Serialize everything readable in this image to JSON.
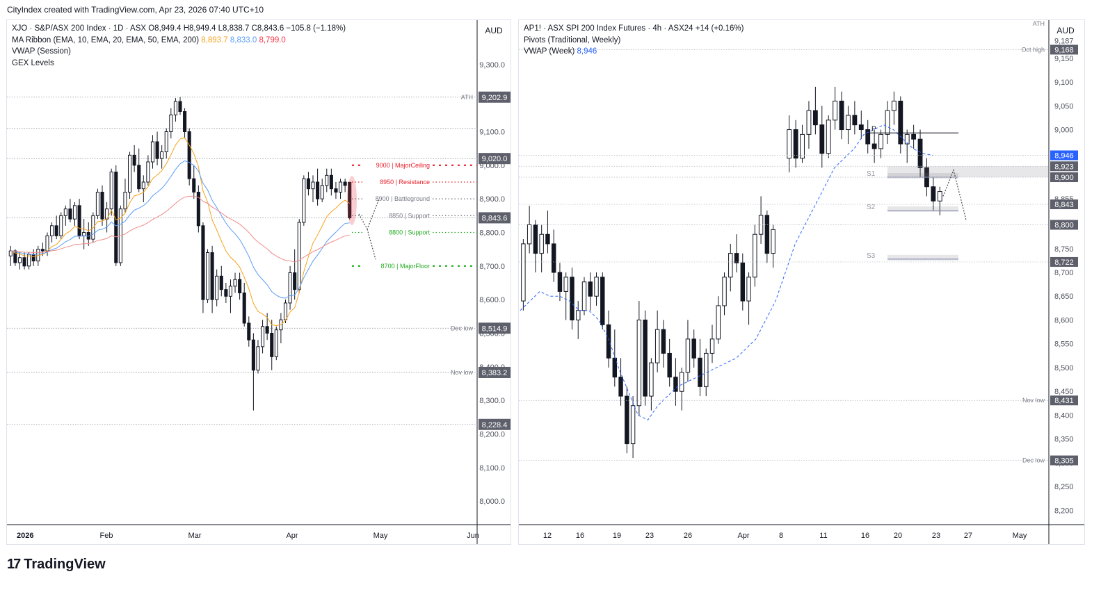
{
  "header": {
    "text": "CityIndex created with TradingView.com, Apr 23, 2026 07:40 UTC+10"
  },
  "footer": {
    "logo_text": "TradingView",
    "logo_icon": "tradingview-logo-icon"
  },
  "colors": {
    "up": "#ffffff",
    "down": "#131722",
    "ema10": "#f7a21b",
    "ema20": "#5b9cf6",
    "ema50": "#f08a8a",
    "ema200": "#f23645",
    "vwap": "#2962ff",
    "red": "#e8202a",
    "green": "#22ab20",
    "grey": "#787b86"
  },
  "left": {
    "legend": {
      "line1": "XJO · S&P/ASX 200 Index · 1D · ASX  O8,949.4  H8,949.4  L8,838.7  C8,843.6  −105.8 (−1.18%)",
      "line2_label": "MA Ribbon (EMA, 10, EMA, 20, EMA, 50, EMA, 200)",
      "ema10_value": "8,893.7",
      "ema20_value": "8,833.0",
      "ema50_value": "8,799.0",
      "line3": "VWAP (Session)",
      "line4": "GEX Levels"
    },
    "currency": "AUD",
    "y_ticks": [
      "9,300.0",
      "9,200.0",
      "9,100.0",
      "9,000.0",
      "8,900.0",
      "8,800.0",
      "8,700.0",
      "8,600.0",
      "8,500.0",
      "8,400.0",
      "8,300.0",
      "8,200.0",
      "8,100.0",
      "8,000.0"
    ],
    "y_tick_values": [
      9300,
      9200,
      9100,
      9000,
      8900,
      8800,
      8700,
      8600,
      8500,
      8400,
      8300,
      8200,
      8100,
      8000
    ],
    "x_labels": [
      "2026",
      "Feb",
      "Mar",
      "Apr",
      "May",
      "Jun"
    ],
    "level_labels": [
      {
        "name": "ATH",
        "value": 9202.9,
        "text": "9,202.9",
        "tag": "ATH"
      },
      {
        "name": "hi",
        "value": 9110,
        "text": "",
        "tag": ""
      },
      {
        "name": "9020",
        "value": 9020.0,
        "text": "9,020.0",
        "tag": ""
      },
      {
        "name": "cur",
        "value": 8843.6,
        "text": "8,843.6",
        "tag": ""
      },
      {
        "name": "declow",
        "value": 8514.9,
        "text": "8,514.9",
        "tag": "Dec low"
      },
      {
        "name": "novlow",
        "value": 8383.2,
        "text": "8,383.2",
        "tag": "Nov low"
      },
      {
        "name": "low2",
        "value": 8228.4,
        "text": "8,228.4",
        "tag": ""
      }
    ],
    "gex": [
      {
        "value": 9000,
        "text": "9000 | MajorCeiling",
        "color": "red",
        "style": "major"
      },
      {
        "value": 8950,
        "text": "8950 | Resistance",
        "color": "red",
        "style": "minor"
      },
      {
        "value": 8900,
        "text": "8900 | Battleground",
        "color": "grey",
        "style": "minor"
      },
      {
        "value": 8850,
        "text": "8850 | Support",
        "color": "grey",
        "style": "minor"
      },
      {
        "value": 8800,
        "text": "8800 | Support",
        "color": "green",
        "style": "minor"
      },
      {
        "value": 8700,
        "text": "8700 | MajorFloor",
        "color": "green",
        "style": "major"
      }
    ]
  },
  "right": {
    "legend": {
      "line1": "AP1! · ASX SPI 200 Index Futures · 4h · ASX24  +14 (+0.16%)",
      "line2": "Pivots (Traditional, Weekly)",
      "line3_label": "VWAP (Week)",
      "vwap_value": "8,946"
    },
    "currency": "AUD",
    "ath_tag": "ATH",
    "y_ticks": [
      "9,187",
      "9,150",
      "9,100",
      "9,050",
      "9,000",
      "8,855",
      "8,750",
      "8,700",
      "8,650",
      "8,600",
      "8,550",
      "8,500",
      "8,450",
      "8,400",
      "8,350",
      "8,300",
      "8,250",
      "8,200"
    ],
    "y_tick_values": [
      9187,
      9150,
      9100,
      9050,
      9000,
      8855,
      8750,
      8700,
      8650,
      8600,
      8550,
      8500,
      8450,
      8400,
      8350,
      8300,
      8250,
      8200
    ],
    "x_labels": [
      "12",
      "16",
      "19",
      "23",
      "26",
      "Apr",
      "8",
      "11",
      "16",
      "20",
      "23",
      "27",
      "May"
    ],
    "price_tags": [
      {
        "value": 9168,
        "text": "9,168",
        "tag": "Oct high",
        "kind": "grey"
      },
      {
        "value": 8946,
        "text": "8,946",
        "tag": "",
        "kind": "blue"
      },
      {
        "value": 8923,
        "text": "8,923",
        "tag": "",
        "kind": "grey"
      },
      {
        "value": 8900,
        "text": "8,900",
        "tag": "",
        "kind": "grey"
      },
      {
        "value": 8843,
        "text": "8,843",
        "tag": "",
        "kind": "grey"
      },
      {
        "value": 8800,
        "text": "8,800",
        "tag": "",
        "kind": "grey"
      },
      {
        "value": 8722,
        "text": "8,722",
        "tag": "",
        "kind": "grey"
      },
      {
        "value": 8431,
        "text": "8,431",
        "tag": "Nov low",
        "kind": "grey"
      },
      {
        "value": 8305,
        "text": "8,305",
        "tag": "Dec low",
        "kind": "grey"
      }
    ],
    "pivots": [
      {
        "label": "P",
        "value": 8993
      },
      {
        "label": "S1",
        "value": 8900
      },
      {
        "label": "S2",
        "value": 8830
      },
      {
        "label": "S3",
        "value": 8728
      }
    ]
  },
  "chart_data": [
    {
      "type": "candlestick",
      "title": "XJO · S&P/ASX 200 Index · 1D · ASX",
      "ylim": [
        7930,
        9370
      ],
      "ohlc": [
        [
          8730,
          8760,
          8700,
          8745
        ],
        [
          8745,
          8750,
          8700,
          8710
        ],
        [
          8710,
          8740,
          8690,
          8725
        ],
        [
          8725,
          8740,
          8690,
          8700
        ],
        [
          8700,
          8740,
          8690,
          8735
        ],
        [
          8735,
          8750,
          8700,
          8715
        ],
        [
          8715,
          8760,
          8700,
          8750
        ],
        [
          8750,
          8770,
          8730,
          8745
        ],
        [
          8745,
          8800,
          8730,
          8790
        ],
        [
          8790,
          8830,
          8770,
          8820
        ],
        [
          8820,
          8850,
          8780,
          8790
        ],
        [
          8790,
          8860,
          8780,
          8850
        ],
        [
          8850,
          8880,
          8820,
          8870
        ],
        [
          8870,
          8900,
          8830,
          8840
        ],
        [
          8840,
          8890,
          8820,
          8880
        ],
        [
          8880,
          8900,
          8780,
          8790
        ],
        [
          8790,
          8840,
          8750,
          8800
        ],
        [
          8800,
          8830,
          8760,
          8780
        ],
        [
          8780,
          8860,
          8770,
          8850
        ],
        [
          8850,
          8930,
          8840,
          8920
        ],
        [
          8920,
          8940,
          8820,
          8840
        ],
        [
          8840,
          8890,
          8800,
          8870
        ],
        [
          8870,
          8990,
          8850,
          8980
        ],
        [
          8980,
          9000,
          8700,
          8710
        ],
        [
          8710,
          8880,
          8700,
          8870
        ],
        [
          8870,
          8960,
          8860,
          8920
        ],
        [
          8920,
          9040,
          8900,
          9030
        ],
        [
          9030,
          9060,
          8980,
          9000
        ],
        [
          9000,
          9050,
          8920,
          8930
        ],
        [
          8930,
          8970,
          8890,
          8950
        ],
        [
          8950,
          9030,
          8940,
          9010
        ],
        [
          9010,
          9090,
          8990,
          9070
        ],
        [
          9070,
          9100,
          9000,
          9020
        ],
        [
          9020,
          9060,
          8990,
          9040
        ],
        [
          9040,
          9110,
          9020,
          9100
        ],
        [
          9100,
          9170,
          9080,
          9150
        ],
        [
          9150,
          9200,
          9130,
          9190
        ],
        [
          9190,
          9203,
          9150,
          9160
        ],
        [
          9160,
          9170,
          9080,
          9100
        ],
        [
          9100,
          9110,
          8940,
          8960
        ],
        [
          8960,
          9000,
          8900,
          8920
        ],
        [
          8920,
          8940,
          8800,
          8820
        ],
        [
          8820,
          8830,
          8560,
          8600
        ],
        [
          8600,
          8750,
          8590,
          8740
        ],
        [
          8740,
          8760,
          8560,
          8600
        ],
        [
          8600,
          8690,
          8580,
          8670
        ],
        [
          8670,
          8700,
          8610,
          8630
        ],
        [
          8630,
          8650,
          8590,
          8610
        ],
        [
          8610,
          8660,
          8560,
          8640
        ],
        [
          8640,
          8680,
          8620,
          8660
        ],
        [
          8660,
          8680,
          8600,
          8620
        ],
        [
          8620,
          8650,
          8520,
          8530
        ],
        [
          8530,
          8550,
          8460,
          8480
        ],
        [
          8480,
          8500,
          8270,
          8390
        ],
        [
          8390,
          8480,
          8380,
          8460
        ],
        [
          8460,
          8540,
          8440,
          8520
        ],
        [
          8520,
          8560,
          8480,
          8500
        ],
        [
          8500,
          8540,
          8390,
          8430
        ],
        [
          8430,
          8520,
          8420,
          8510
        ],
        [
          8510,
          8560,
          8470,
          8540
        ],
        [
          8540,
          8600,
          8530,
          8590
        ],
        [
          8590,
          8700,
          8570,
          8680
        ],
        [
          8680,
          8750,
          8600,
          8630
        ],
        [
          8630,
          8840,
          8620,
          8830
        ],
        [
          8830,
          8970,
          8820,
          8960
        ],
        [
          8960,
          8980,
          8910,
          8930
        ],
        [
          8930,
          8970,
          8890,
          8950
        ],
        [
          8950,
          8990,
          8880,
          8900
        ],
        [
          8900,
          8960,
          8890,
          8940
        ],
        [
          8940,
          8990,
          8920,
          8970
        ],
        [
          8970,
          8990,
          8910,
          8930
        ],
        [
          8930,
          8950,
          8900,
          8920
        ],
        [
          8920,
          8960,
          8900,
          8950
        ],
        [
          8950,
          8960,
          8920,
          8940
        ],
        [
          8949.4,
          8949.4,
          8838.7,
          8843.6
        ]
      ]
    },
    {
      "type": "candlestick",
      "title": "AP1! · ASX SPI 200 Index Futures · 4h · ASX24",
      "ylim": [
        8170,
        9230
      ],
      "ohlc": [
        [
          8640,
          8770,
          8620,
          8760
        ],
        [
          8760,
          8840,
          8740,
          8800
        ],
        [
          8800,
          8810,
          8700,
          8740
        ],
        [
          8740,
          8800,
          8700,
          8780
        ],
        [
          8780,
          8830,
          8740,
          8760
        ],
        [
          8760,
          8790,
          8680,
          8700
        ],
        [
          8700,
          8720,
          8640,
          8660
        ],
        [
          8660,
          8700,
          8600,
          8690
        ],
        [
          8690,
          8710,
          8580,
          8600
        ],
        [
          8600,
          8640,
          8560,
          8620
        ],
        [
          8620,
          8690,
          8610,
          8680
        ],
        [
          8680,
          8700,
          8620,
          8650
        ],
        [
          8650,
          8700,
          8630,
          8690
        ],
        [
          8690,
          8700,
          8580,
          8590
        ],
        [
          8590,
          8620,
          8500,
          8520
        ],
        [
          8520,
          8580,
          8460,
          8480
        ],
        [
          8480,
          8520,
          8420,
          8440
        ],
        [
          8440,
          8460,
          8320,
          8340
        ],
        [
          8340,
          8440,
          8310,
          8420
        ],
        [
          8420,
          8640,
          8400,
          8600
        ],
        [
          8600,
          8620,
          8420,
          8440
        ],
        [
          8440,
          8520,
          8410,
          8510
        ],
        [
          8510,
          8620,
          8490,
          8580
        ],
        [
          8580,
          8600,
          8500,
          8530
        ],
        [
          8530,
          8560,
          8460,
          8480
        ],
        [
          8480,
          8520,
          8420,
          8450
        ],
        [
          8450,
          8500,
          8410,
          8490
        ],
        [
          8490,
          8600,
          8470,
          8560
        ],
        [
          8560,
          8580,
          8500,
          8520
        ],
        [
          8520,
          8560,
          8440,
          8460
        ],
        [
          8460,
          8540,
          8440,
          8530
        ],
        [
          8530,
          8590,
          8510,
          8560
        ],
        [
          8560,
          8650,
          8550,
          8630
        ],
        [
          8630,
          8700,
          8610,
          8690
        ],
        [
          8690,
          8760,
          8660,
          8740
        ],
        [
          8740,
          8780,
          8700,
          8720
        ],
        [
          8720,
          8740,
          8620,
          8640
        ],
        [
          8640,
          8700,
          8590,
          8690
        ],
        [
          8690,
          8800,
          8670,
          8780
        ],
        [
          8780,
          8860,
          8760,
          8820
        ],
        [
          8820,
          8830,
          8720,
          8740
        ],
        [
          8740,
          8800,
          8710,
          8790
        ],
        [
          8940,
          9030,
          8910,
          9000
        ],
        [
          9000,
          9020,
          8920,
          8940
        ],
        [
          8940,
          9010,
          8930,
          8990
        ],
        [
          8990,
          9060,
          8960,
          9040
        ],
        [
          9040,
          9090,
          8990,
          9010
        ],
        [
          9010,
          9050,
          8920,
          8950
        ],
        [
          8950,
          9030,
          8940,
          9020
        ],
        [
          9020,
          9090,
          9000,
          9060
        ],
        [
          9060,
          9080,
          8980,
          9000
        ],
        [
          9000,
          9050,
          8970,
          9030
        ],
        [
          9030,
          9060,
          8990,
          9010
        ],
        [
          9010,
          9040,
          8980,
          9000
        ],
        [
          9000,
          9020,
          8950,
          8970
        ],
        [
          8970,
          9000,
          8930,
          8960
        ],
        [
          8960,
          9000,
          8940,
          8990
        ],
        [
          8990,
          9060,
          8970,
          9040
        ],
        [
          9040,
          9080,
          9010,
          9060
        ],
        [
          9060,
          9070,
          8950,
          8970
        ],
        [
          8970,
          9000,
          8930,
          8990
        ],
        [
          8990,
          9010,
          8960,
          8980
        ],
        [
          8980,
          9000,
          8900,
          8920
        ],
        [
          8920,
          8940,
          8860,
          8880
        ],
        [
          8880,
          8900,
          8830,
          8850
        ],
        [
          8850,
          8880,
          8820,
          8870
        ]
      ]
    }
  ]
}
